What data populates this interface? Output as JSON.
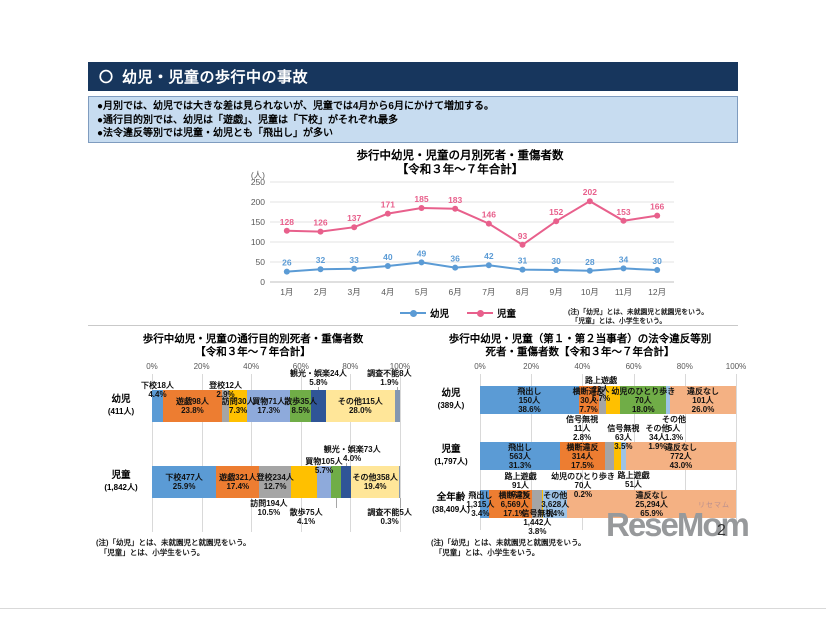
{
  "header": {
    "marker": "〇",
    "title": "幼児・児童の歩行中の事故"
  },
  "summary": {
    "bullets": [
      "●月別では、幼児では大きな差は見られないが、児童では4月から6月にかけて増加する。",
      "●通行目的別では、幼児は「遊戯」、児童は「下校」がそれぞれ最多",
      "●法令違反等別では児童・幼児とも「飛出し」が多い"
    ]
  },
  "chart_data": [
    {
      "type": "line",
      "title": "歩行中幼児・児童の月別死者・重傷者数",
      "subtitle": "【令和３年～７年合計】",
      "unit_label": "(人)",
      "x": [
        "1月",
        "2月",
        "3月",
        "4月",
        "5月",
        "6月",
        "7月",
        "8月",
        "9月",
        "10月",
        "11月",
        "12月"
      ],
      "ylim": [
        0,
        250
      ],
      "ytick": 50,
      "grid": true,
      "legend_position": "bottom",
      "series": [
        {
          "name": "幼児",
          "color": "#5B9BD5",
          "values": [
            26,
            32,
            33,
            40,
            49,
            36,
            42,
            31,
            30,
            28,
            34,
            30
          ]
        },
        {
          "name": "児童",
          "color": "#E8608C",
          "values": [
            128,
            126,
            137,
            171,
            185,
            183,
            146,
            93,
            152,
            202,
            153,
            166
          ]
        }
      ],
      "note": "(注)「幼児」とは、未就園児と就園児をいう。\n　「児童」とは、小学生をいう。"
    },
    {
      "type": "bar",
      "stacked": true,
      "orientation": "horizontal",
      "unit": "percent",
      "label_lines": 2,
      "title": "歩行中幼児・児童の通行目的別死者・重傷者数",
      "subtitle": "【令和３年～７年合計】",
      "xticks": [
        "0%",
        "20%",
        "40%",
        "60%",
        "80%",
        "100%"
      ],
      "categories": [
        {
          "name": "下校",
          "color": "#5B9BD5"
        },
        {
          "name": "遊戯",
          "color": "#ED7D31"
        },
        {
          "name": "登校",
          "color": "#A5A5A5"
        },
        {
          "name": "訪問",
          "color": "#FFC000"
        },
        {
          "name": "買物",
          "color": "#8EAADB"
        },
        {
          "name": "散歩",
          "color": "#70AD47"
        },
        {
          "name": "観光・娯楽",
          "color": "#2F5597"
        },
        {
          "name": "その他",
          "color": "#FFE699"
        },
        {
          "name": "調査不能",
          "color": "#8497B0"
        }
      ],
      "rows": [
        {
          "label": "幼児",
          "sublabel": "(411人)",
          "segments": [
            {
              "cat": "下校",
              "count": "18",
              "pct": "4.4",
              "pos": "up1"
            },
            {
              "cat": "遊戯",
              "count": "98",
              "pct": "23.8",
              "pos": "in"
            },
            {
              "cat": "登校",
              "count": "12",
              "pct": "2.9",
              "pos": "up1"
            },
            {
              "cat": "訪問",
              "count": "30",
              "pct": "7.3",
              "pos": "in"
            },
            {
              "cat": "買物",
              "count": "71",
              "pct": "17.3",
              "pos": "in"
            },
            {
              "cat": "散歩",
              "count": "35",
              "pct": "8.5",
              "pos": "in"
            },
            {
              "cat": "観光・娯楽",
              "count": "24",
              "pct": "5.8",
              "pos": "up2"
            },
            {
              "cat": "その他",
              "count": "115",
              "pct": "28.0",
              "pos": "in"
            },
            {
              "cat": "調査不能",
              "count": "8",
              "pct": "1.9",
              "pos": "up2",
              "dx": -8
            }
          ]
        },
        {
          "label": "児童",
          "sublabel": "(1,842人)",
          "segments": [
            {
              "cat": "下校",
              "count": "477",
              "pct": "25.9",
              "pos": "in"
            },
            {
              "cat": "遊戯",
              "count": "321",
              "pct": "17.4",
              "pos": "in"
            },
            {
              "cat": "登校",
              "count": "234",
              "pct": "12.7",
              "pos": "in"
            },
            {
              "cat": "訪問",
              "count": "194",
              "pct": "10.5",
              "pos": "dn1",
              "dx": -35
            },
            {
              "cat": "買物",
              "count": "105",
              "pct": "5.7",
              "pos": "up1"
            },
            {
              "cat": "散歩",
              "count": "75",
              "pct": "4.1",
              "pos": "dn2",
              "dx": -30
            },
            {
              "cat": "観光・娯楽",
              "count": "73",
              "pct": "4.0",
              "pos": "up2",
              "dx": 6
            },
            {
              "cat": "その他",
              "count": "358",
              "pct": "19.4",
              "pos": "in"
            },
            {
              "cat": "調査不能",
              "count": "5",
              "pct": "0.3",
              "pos": "dn2",
              "dx": -10
            }
          ]
        }
      ],
      "note": "(注)「幼児」とは、未就園児と就園児をいう。\n　「児童」とは、小学生をいう。"
    },
    {
      "type": "bar",
      "stacked": true,
      "orientation": "horizontal",
      "unit": "percent",
      "label_lines": 3,
      "title": "歩行中幼児・児童（第１・第２当事者）の法令違反等別",
      "subtitle": "死者・重傷者数【令和３年～７年合計】",
      "xticks": [
        "0%",
        "20%",
        "40%",
        "60%",
        "80%",
        "100%"
      ],
      "categories": [
        {
          "name": "飛出し",
          "color": "#5B9BD5"
        },
        {
          "name": "横断違反",
          "color": "#ED7D31"
        },
        {
          "name": "信号無視",
          "color": "#A5A5A5"
        },
        {
          "name": "路上遊戯",
          "color": "#FFC000"
        },
        {
          "name": "幼児のひとり歩き",
          "color": "#70AD47"
        },
        {
          "name": "その他",
          "color": "#9DC3E6"
        },
        {
          "name": "違反なし",
          "color": "#F4B183"
        }
      ],
      "rows": [
        {
          "label": "幼児",
          "sublabel": "(389人)",
          "segments": [
            {
              "cat": "飛出し",
              "count": "150",
              "pct": "38.6",
              "pos": "in"
            },
            {
              "cat": "横断違反",
              "count": "30",
              "pct": "7.7",
              "pos": "in"
            },
            {
              "cat": "信号無視",
              "count": "11",
              "pct": "2.8",
              "pos": "dn1",
              "dx": -20
            },
            {
              "cat": "路上遊戯",
              "count": "22",
              "pct": "5.7",
              "pos": "up1",
              "dx": -12,
              "dy": 8
            },
            {
              "cat": "幼児のひとり歩き",
              "count": "70",
              "pct": "18.0",
              "pos": "in"
            },
            {
              "cat": "その他",
              "count": "5",
              "pct": "1.3",
              "pos": "dn1",
              "dx": 6
            },
            {
              "cat": "違反なし",
              "count": "101",
              "pct": "26.0",
              "pos": "in"
            }
          ]
        },
        {
          "label": "児童",
          "sublabel": "(1,797人)",
          "segments": [
            {
              "cat": "飛出し",
              "count": "563",
              "pct": "31.3",
              "pos": "in"
            },
            {
              "cat": "横断違反",
              "count": "314",
              "pct": "17.5",
              "pos": "in"
            },
            {
              "cat": "信号無視",
              "count": "63",
              "pct": "3.5",
              "pos": "up1",
              "dx": 14
            },
            {
              "cat": "路上遊戯",
              "count": "51",
              "pct": "2.8",
              "pos": "dn1",
              "dx": 16
            },
            {
              "cat": "その他",
              "count": "34",
              "pct": "1.9",
              "pos": "up1",
              "dx": 34
            },
            {
              "cat": "違反なし",
              "count": "772",
              "pct": "43.0",
              "pos": "in"
            }
          ]
        },
        {
          "label": "全年齢",
          "sublabel": "(38,409人)",
          "segments": [
            {
              "cat": "飛出し",
              "count": "1,315",
              "pct": "3.4",
              "pos": "in",
              "dx": -4
            },
            {
              "cat": "横断違反",
              "count": "6,569",
              "pct": "17.1",
              "pos": "in",
              "dx": 4
            },
            {
              "cat": "信号無視",
              "count": "1,442",
              "pct": "3.8",
              "pos": "dn1",
              "dy": -10
            },
            {
              "cat": "路上遊戯",
              "count": "91",
              "pct": "0.2",
              "pos": "up1",
              "dx": -22
            },
            {
              "cat": "幼児のひとり歩き",
              "count": "70",
              "pct": "0.2",
              "pos": "up1",
              "dx": 40
            },
            {
              "cat": "その他",
              "count": "3,628",
              "pct": "9.4",
              "pos": "in"
            },
            {
              "cat": "違反なし",
              "count": "25,294",
              "pct": "65.9",
              "pos": "in"
            }
          ]
        }
      ],
      "note": "(注)「幼児」とは、未就園児と就園児をいう。\n　「児童」とは、小学生をいう。"
    }
  ],
  "logo": {
    "text": "ReseMom",
    "ruby": "リセマム"
  },
  "page_number": "2"
}
